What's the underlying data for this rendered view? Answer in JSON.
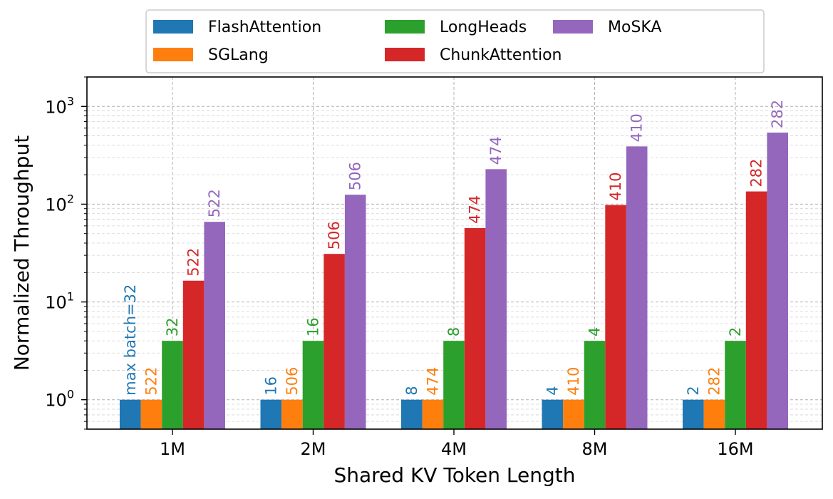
{
  "chart_data": {
    "type": "bar",
    "title": "",
    "xlabel": "Shared KV Token Length",
    "ylabel": "Normalized Throughput",
    "yscale": "log",
    "ylim": [
      0.5,
      2000
    ],
    "ytick_base": "10",
    "ytick_exponents": [
      "0",
      "1",
      "2",
      "3"
    ],
    "grid": true,
    "legend_position": "top-center",
    "categories": [
      "1M",
      "2M",
      "4M",
      "8M",
      "16M"
    ],
    "series": [
      {
        "name": "FlashAttention",
        "color": "#1f77b4",
        "values": [
          1,
          1,
          1,
          1,
          1
        ],
        "labels": [
          "max batch=32",
          "16",
          "8",
          "4",
          "2"
        ]
      },
      {
        "name": "SGLang",
        "color": "#ff7f0e",
        "values": [
          1,
          1,
          1,
          1,
          1
        ],
        "labels": [
          "522",
          "506",
          "474",
          "410",
          "282"
        ]
      },
      {
        "name": "LongHeads",
        "color": "#2ca02c",
        "values": [
          4,
          4,
          4,
          4,
          4
        ],
        "labels": [
          "32",
          "16",
          "8",
          "4",
          "2"
        ]
      },
      {
        "name": "ChunkAttention",
        "color": "#d62728",
        "values": [
          16.5,
          31,
          57,
          98,
          135
        ],
        "labels": [
          "522",
          "506",
          "474",
          "410",
          "282"
        ]
      },
      {
        "name": "MoSKA",
        "color": "#9467bd",
        "values": [
          66,
          125,
          228,
          390,
          540
        ],
        "labels": [
          "522",
          "506",
          "474",
          "410",
          "282"
        ]
      }
    ]
  }
}
